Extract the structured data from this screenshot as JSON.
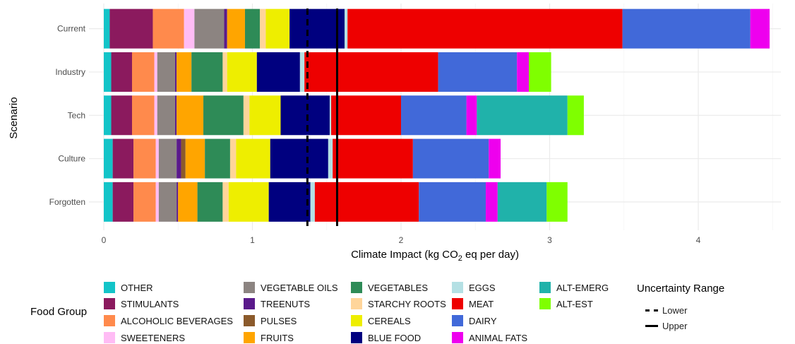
{
  "chart_data": {
    "type": "bar",
    "orientation": "horizontal",
    "stacked": true,
    "xlabel_prefix": "Climate Impact (kg CO",
    "xlabel_sub": "2",
    "xlabel_suffix": " eq per day)",
    "ylabel": "Scenario",
    "xlim": [
      0,
      4.55
    ],
    "x_ticks": [
      0,
      1,
      2,
      3,
      4
    ],
    "grid": true,
    "legend_position": "bottom",
    "categories": [
      "Current",
      "Industry",
      "Tech",
      "Culture",
      "Forgotten"
    ],
    "series": [
      {
        "name": "OTHER",
        "color": "#13c4c8",
        "values": [
          0.04,
          0.05,
          0.05,
          0.06,
          0.06
        ]
      },
      {
        "name": "STIMULANTS",
        "color": "#8b1a5e",
        "values": [
          0.29,
          0.14,
          0.14,
          0.14,
          0.14
        ]
      },
      {
        "name": "ALCOHOLIC BEVERAGES",
        "color": "#ff8a4c",
        "values": [
          0.21,
          0.15,
          0.15,
          0.15,
          0.15
        ]
      },
      {
        "name": "SWEETENERS",
        "color": "#ffbcf5",
        "values": [
          0.07,
          0.02,
          0.02,
          0.02,
          0.02
        ]
      },
      {
        "name": "VEGETABLE OILS",
        "color": "#8c8481",
        "values": [
          0.2,
          0.12,
          0.12,
          0.12,
          0.12
        ]
      },
      {
        "name": "TREENUTS",
        "color": "#5a1a8b",
        "values": [
          0.02,
          0.01,
          0.01,
          0.03,
          0.01
        ]
      },
      {
        "name": "PULSES",
        "color": "#8b5a2b",
        "values": [
          0.0,
          0.0,
          0.0,
          0.03,
          0.0
        ]
      },
      {
        "name": "FRUITS",
        "color": "#ffa500",
        "values": [
          0.12,
          0.1,
          0.18,
          0.13,
          0.13
        ]
      },
      {
        "name": "VEGETABLES",
        "color": "#2e8b57",
        "values": [
          0.1,
          0.21,
          0.27,
          0.17,
          0.17
        ]
      },
      {
        "name": "STARCHY ROOTS",
        "color": "#ffd59a",
        "values": [
          0.04,
          0.03,
          0.04,
          0.04,
          0.04
        ]
      },
      {
        "name": "CEREALS",
        "color": "#eeee00",
        "values": [
          0.16,
          0.2,
          0.21,
          0.23,
          0.27
        ]
      },
      {
        "name": "BLUE FOOD",
        "color": "#00007f",
        "values": [
          0.37,
          0.29,
          0.33,
          0.39,
          0.28
        ]
      },
      {
        "name": "EGGS",
        "color": "#b4e0e4",
        "values": [
          0.02,
          0.03,
          0.01,
          0.03,
          0.03
        ]
      },
      {
        "name": "MEAT",
        "color": "#ee0000",
        "values": [
          1.85,
          0.9,
          0.47,
          0.54,
          0.7
        ]
      },
      {
        "name": "DAIRY",
        "color": "#4169d9",
        "values": [
          0.86,
          0.53,
          0.44,
          0.51,
          0.45
        ]
      },
      {
        "name": "ANIMAL FATS",
        "color": "#ee00ee",
        "values": [
          0.13,
          0.08,
          0.07,
          0.08,
          0.08
        ]
      },
      {
        "name": "ALT-EMERG",
        "color": "#20b2aa",
        "values": [
          0.0,
          0.0,
          0.61,
          0.0,
          0.33
        ]
      },
      {
        "name": "ALT-EST",
        "color": "#7fff00",
        "values": [
          0.0,
          0.15,
          0.11,
          0.0,
          0.14
        ]
      }
    ],
    "uncertainty": {
      "title": "Uncertainty Range",
      "lower": {
        "label": "Lower",
        "value": 1.37
      },
      "upper": {
        "label": "Upper",
        "value": 1.57
      }
    },
    "legend_title": "Food Group",
    "legend_columns": [
      [
        "OTHER",
        "STIMULANTS",
        "ALCOHOLIC BEVERAGES",
        "SWEETENERS"
      ],
      [
        "VEGETABLE OILS",
        "TREENUTS",
        "PULSES",
        "FRUITS"
      ],
      [
        "VEGETABLES",
        "STARCHY ROOTS",
        "CEREALS",
        "BLUE FOOD"
      ],
      [
        "EGGS",
        "MEAT",
        "DAIRY",
        "ANIMAL FATS"
      ],
      [
        "ALT-EMERG",
        "ALT-EST"
      ]
    ]
  }
}
